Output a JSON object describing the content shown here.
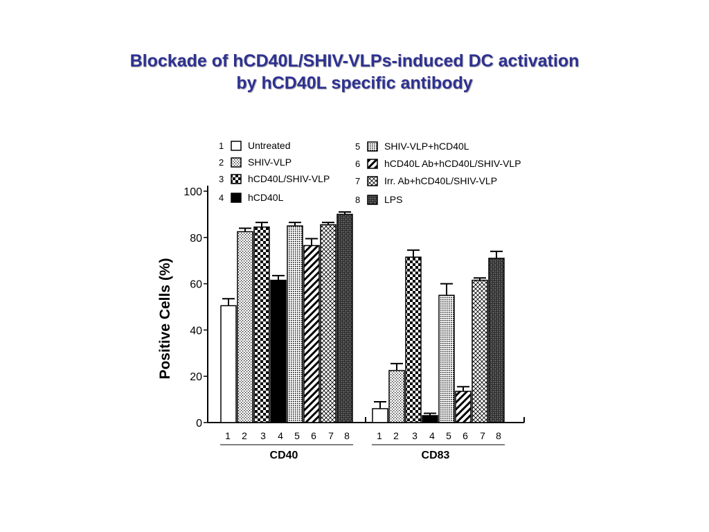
{
  "title": {
    "line1": "Blockade of hCD40L/SHIV-VLPs-induced DC activation",
    "line2": "by hCD40L specific antibody"
  },
  "chart_data": {
    "type": "bar",
    "ylabel": "Positive Cells (%)",
    "ylim": [
      0,
      100
    ],
    "yticks": [
      "0",
      "20",
      "40",
      "60",
      "80",
      "100"
    ],
    "groups": [
      "CD40",
      "CD83"
    ],
    "categories": [
      "1",
      "2",
      "3",
      "4",
      "5",
      "6",
      "7",
      "8"
    ],
    "legend": [
      {
        "number": "1",
        "label": "Untreated",
        "pattern": "blank"
      },
      {
        "number": "2",
        "label": "SHIV-VLP",
        "pattern": "dots"
      },
      {
        "number": "3",
        "label": "hCD40L/SHIV-VLP",
        "pattern": "checker"
      },
      {
        "number": "4",
        "label": "hCD40L",
        "pattern": "solid"
      },
      {
        "number": "5",
        "label": "SHIV-VLP+hCD40L",
        "pattern": "dense-dots"
      },
      {
        "number": "6",
        "label": "hCD40L Ab+hCD40L/SHIV-VLP",
        "pattern": "diagonal"
      },
      {
        "number": "7",
        "label": "Irr. Ab+hCD40L/SHIV-VLP",
        "pattern": "crosshatch"
      },
      {
        "number": "8",
        "label": "LPS",
        "pattern": "dark-checker"
      }
    ],
    "series": [
      {
        "group": "CD40",
        "values": [
          50.5,
          82.5,
          84.5,
          61.5,
          85,
          76.5,
          85.5,
          90
        ],
        "errors": [
          3,
          1.5,
          2,
          2,
          1.5,
          3,
          1,
          1
        ]
      },
      {
        "group": "CD83",
        "values": [
          6,
          22.5,
          71.5,
          3,
          55,
          13.5,
          61.5,
          71
        ],
        "errors": [
          3,
          3,
          3,
          1,
          5,
          2,
          1,
          3
        ]
      }
    ],
    "legend_placement": "top",
    "grid": false
  }
}
